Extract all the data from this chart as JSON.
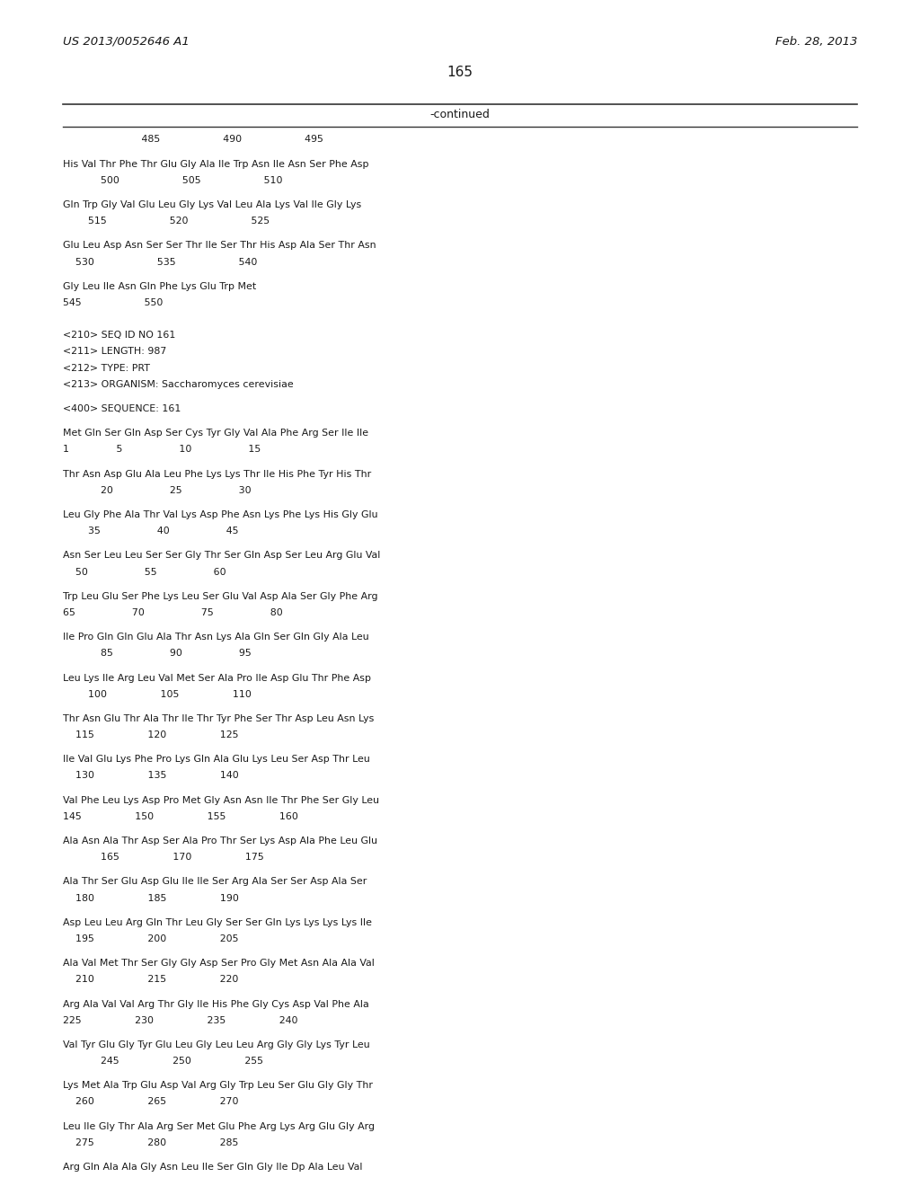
{
  "patent_number": "US 2013/0052646 A1",
  "date": "Feb. 28, 2013",
  "page_number": "165",
  "continued_label": "-continued",
  "background_color": "#ffffff",
  "text_color": "#1a1a1a",
  "seq_lines": [
    "                         485                    490                    495",
    "",
    "His Val Thr Phe Thr Glu Gly Ala Ile Trp Asn Ile Asn Ser Phe Asp",
    "            500                    505                    510",
    "",
    "Gln Trp Gly Val Glu Leu Gly Lys Val Leu Ala Lys Val Ile Gly Lys",
    "        515                    520                    525",
    "",
    "Glu Leu Asp Asn Ser Ser Thr Ile Ser Thr His Asp Ala Ser Thr Asn",
    "    530                    535                    540",
    "",
    "Gly Leu Ile Asn Gln Phe Lys Glu Trp Met",
    "545                    550",
    "",
    "",
    "<210> SEQ ID NO 161",
    "<211> LENGTH: 987",
    "<212> TYPE: PRT",
    "<213> ORGANISM: Saccharomyces cerevisiae",
    "",
    "<400> SEQUENCE: 161",
    "",
    "Met Gln Ser Gln Asp Ser Cys Tyr Gly Val Ala Phe Arg Ser Ile Ile",
    "1               5                  10                  15",
    "",
    "Thr Asn Asp Glu Ala Leu Phe Lys Lys Thr Ile His Phe Tyr His Thr",
    "            20                  25                  30",
    "",
    "Leu Gly Phe Ala Thr Val Lys Asp Phe Asn Lys Phe Lys His Gly Glu",
    "        35                  40                  45",
    "",
    "Asn Ser Leu Leu Ser Ser Gly Thr Ser Gln Asp Ser Leu Arg Glu Val",
    "    50                  55                  60",
    "",
    "Trp Leu Glu Ser Phe Lys Leu Ser Glu Val Asp Ala Ser Gly Phe Arg",
    "65                  70                  75                  80",
    "",
    "Ile Pro Gln Gln Glu Ala Thr Asn Lys Ala Gln Ser Gln Gly Ala Leu",
    "            85                  90                  95",
    "",
    "Leu Lys Ile Arg Leu Val Met Ser Ala Pro Ile Asp Glu Thr Phe Asp",
    "        100                 105                 110",
    "",
    "Thr Asn Glu Thr Ala Thr Ile Thr Tyr Phe Ser Thr Asp Leu Asn Lys",
    "    115                 120                 125",
    "",
    "Ile Val Glu Lys Phe Pro Lys Gln Ala Glu Lys Leu Ser Asp Thr Leu",
    "    130                 135                 140",
    "",
    "Val Phe Leu Lys Asp Pro Met Gly Asn Asn Ile Thr Phe Ser Gly Leu",
    "145                 150                 155                 160",
    "",
    "Ala Asn Ala Thr Asp Ser Ala Pro Thr Ser Lys Asp Ala Phe Leu Glu",
    "            165                 170                 175",
    "",
    "Ala Thr Ser Glu Asp Glu Ile Ile Ser Arg Ala Ser Ser Asp Ala Ser",
    "    180                 185                 190",
    "",
    "Asp Leu Leu Arg Gln Thr Leu Gly Ser Ser Gln Lys Lys Lys Lys Ile",
    "    195                 200                 205",
    "",
    "Ala Val Met Thr Ser Gly Gly Asp Ser Pro Gly Met Asn Ala Ala Val",
    "    210                 215                 220",
    "",
    "Arg Ala Val Val Arg Thr Gly Ile His Phe Gly Cys Asp Val Phe Ala",
    "225                 230                 235                 240",
    "",
    "Val Tyr Glu Gly Tyr Glu Leu Gly Leu Leu Arg Gly Gly Lys Tyr Leu",
    "            245                 250                 255",
    "",
    "Lys Met Ala Trp Glu Asp Val Arg Gly Trp Leu Ser Glu Gly Gly Thr",
    "    260                 265                 270",
    "",
    "Leu Ile Gly Thr Ala Arg Ser Met Glu Phe Arg Lys Arg Glu Gly Arg",
    "    275                 280                 285",
    "",
    "Arg Gln Ala Ala Gly Asn Leu Ile Ser Gln Gly Ile Dp Ala Leu Val"
  ]
}
